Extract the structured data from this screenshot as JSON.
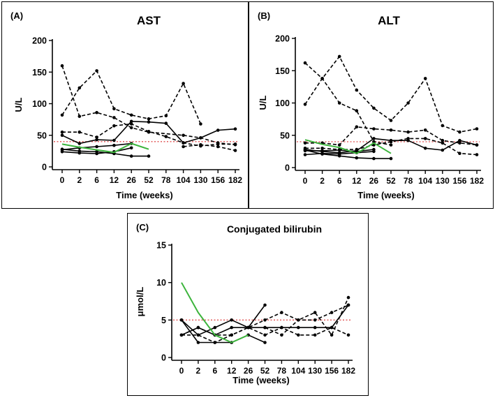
{
  "chart_data": [
    {
      "panel": "(A)",
      "type": "line",
      "title": "AST",
      "xlabel": "Time (weeks)",
      "ylabel": "U/L",
      "categories": [
        "0",
        "2",
        "6",
        "12",
        "26",
        "52",
        "78",
        "104",
        "130",
        "156",
        "182"
      ],
      "yticks": [
        "0",
        "50",
        "100",
        "150",
        "200"
      ],
      "ylim": [
        0,
        200
      ],
      "reference_line": 40,
      "colors": {
        "solid": "#000000",
        "dashed": "#000000",
        "highlight": "#3cb43c",
        "reference": "#e05050"
      },
      "series": [
        {
          "style": "dashed",
          "values": [
            160,
            80,
            86,
            78,
            62,
            55,
            null,
            50,
            46,
            38,
            35
          ]
        },
        {
          "style": "dashed",
          "values": [
            82,
            125,
            152,
            92,
            82,
            76,
            81,
            132,
            68,
            null,
            null
          ]
        },
        {
          "style": "dashed",
          "values": [
            55,
            55,
            47,
            65,
            68,
            56,
            48,
            38,
            33,
            36,
            36
          ]
        },
        {
          "style": "dashed",
          "values": [
            null,
            null,
            null,
            null,
            null,
            null,
            null,
            32,
            35,
            32,
            26
          ]
        },
        {
          "style": "solid",
          "values": [
            50,
            37,
            43,
            42,
            72,
            71,
            69,
            38,
            46,
            58,
            60
          ]
        },
        {
          "style": "solid",
          "values": [
            28,
            25,
            24,
            21,
            17,
            17,
            null,
            null,
            null,
            null,
            null
          ]
        },
        {
          "style": "solid",
          "values": [
            24,
            22,
            21,
            24,
            30,
            null,
            null,
            null,
            null,
            null,
            null
          ]
        },
        {
          "style": "solid",
          "values": [
            27,
            30,
            32,
            34,
            37,
            null,
            null,
            null,
            null,
            null,
            null
          ]
        },
        {
          "style": "highlight",
          "values": [
            36,
            31,
            27,
            23,
            37,
            28,
            null,
            null,
            null,
            null,
            null
          ]
        }
      ]
    },
    {
      "panel": "(B)",
      "type": "line",
      "title": "ALT",
      "xlabel": "Time (weeks)",
      "ylabel": "U/L",
      "categories": [
        "0",
        "2",
        "6",
        "12",
        "26",
        "52",
        "78",
        "104",
        "130",
        "156",
        "182"
      ],
      "yticks": [
        "0",
        "50",
        "100",
        "150",
        "200"
      ],
      "ylim": [
        0,
        200
      ],
      "reference_line": 40,
      "colors": {
        "solid": "#000000",
        "dashed": "#000000",
        "highlight": "#3cb43c",
        "reference": "#e05050"
      },
      "series": [
        {
          "style": "dashed",
          "values": [
            162,
            138,
            100,
            88,
            40,
            35,
            null,
            null,
            null,
            null,
            null
          ]
        },
        {
          "style": "dashed",
          "values": [
            98,
            138,
            172,
            120,
            92,
            73,
            100,
            138,
            65,
            55,
            60
          ]
        },
        {
          "style": "dashed",
          "values": [
            38,
            38,
            35,
            63,
            60,
            58,
            55,
            58,
            42,
            38,
            35
          ]
        },
        {
          "style": "dashed",
          "values": [
            30,
            30,
            28,
            28,
            35,
            40,
            45,
            45,
            38,
            22,
            20
          ]
        },
        {
          "style": "solid",
          "values": [
            28,
            25,
            23,
            26,
            45,
            42,
            42,
            30,
            27,
            42,
            35
          ]
        },
        {
          "style": "solid",
          "values": [
            27,
            21,
            18,
            15,
            14,
            14,
            null,
            null,
            null,
            null,
            null
          ]
        },
        {
          "style": "solid",
          "values": [
            20,
            22,
            21,
            23,
            25,
            null,
            null,
            null,
            null,
            null,
            null
          ]
        },
        {
          "style": "solid",
          "values": [
            26,
            26,
            27,
            25,
            28,
            null,
            null,
            null,
            null,
            null,
            null
          ]
        },
        {
          "style": "highlight",
          "values": [
            43,
            36,
            31,
            22,
            38,
            22,
            null,
            null,
            null,
            null,
            null
          ]
        }
      ]
    },
    {
      "panel": "(C)",
      "type": "line",
      "title": "Conjugated bilirubin",
      "xlabel": "Time (weeks)",
      "ylabel": "μmol/L",
      "categories": [
        "0",
        "2",
        "6",
        "12",
        "26",
        "52",
        "78",
        "104",
        "130",
        "156",
        "182"
      ],
      "yticks": [
        "0",
        "5",
        "10",
        "15"
      ],
      "ylim": [
        0,
        15
      ],
      "reference_line": 5,
      "colors": {
        "solid": "#000000",
        "dashed": "#000000",
        "highlight": "#3cb43c",
        "reference": "#e05050"
      },
      "series": [
        {
          "style": "highlight",
          "values": [
            10,
            6,
            3,
            2,
            3,
            null,
            null,
            null,
            null,
            null,
            null
          ]
        },
        {
          "style": "solid",
          "values": [
            5,
            3,
            4,
            5,
            4,
            7,
            null,
            null,
            null,
            null,
            null
          ]
        },
        {
          "style": "solid",
          "values": [
            3,
            4,
            3,
            4,
            4,
            4,
            4,
            4,
            4,
            4,
            7
          ]
        },
        {
          "style": "solid",
          "values": [
            5,
            2,
            2,
            2,
            3,
            2,
            null,
            null,
            null,
            null,
            null
          ]
        },
        {
          "style": "dashed",
          "values": [
            3,
            3,
            2,
            3,
            4,
            5,
            6,
            5,
            6,
            3,
            8
          ]
        },
        {
          "style": "dashed",
          "values": [
            3,
            4,
            3,
            3,
            4,
            3,
            4,
            3,
            3,
            4,
            3
          ]
        },
        {
          "style": "dashed",
          "values": [
            null,
            null,
            null,
            null,
            null,
            4,
            3,
            5,
            5,
            6,
            7
          ]
        }
      ]
    }
  ]
}
